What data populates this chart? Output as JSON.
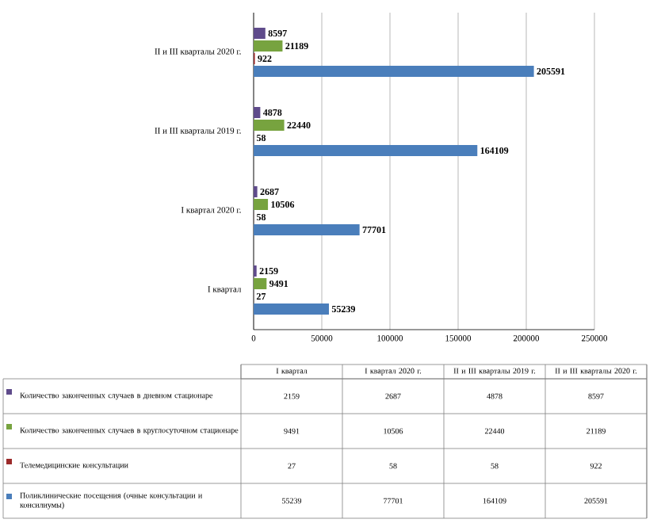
{
  "chart_data": {
    "type": "bar",
    "orientation": "horizontal",
    "categories": [
      "II и III кварталы 2020 г.",
      "II и III кварталы 2019 г.",
      "I квартал 2020 г.",
      "I квартал"
    ],
    "series": [
      {
        "name": "Количество законченных случаев в дневном стационаре",
        "color": "#5f4b8b",
        "values": [
          8597,
          4878,
          2687,
          2159
        ],
        "value_labels": [
          "8597",
          "4878",
          "2687",
          "2159"
        ]
      },
      {
        "name": "Количество законченных случаев в круглосуточном стационаре",
        "color": "#77a33f",
        "values": [
          21189,
          22440,
          10506,
          9491
        ],
        "value_labels": [
          "21189",
          "22440",
          "10506",
          "9491"
        ]
      },
      {
        "name": "Телемедицинские консультации",
        "color": "#9b2a2a",
        "values": [
          922,
          58,
          58,
          27
        ],
        "value_labels": [
          "922",
          "58",
          "58",
          "27"
        ]
      },
      {
        "name": "Поликлинические посещения (очные консультации и консилиумы)",
        "color": "#4a7ebb",
        "values": [
          205591,
          164109,
          77701,
          55239
        ],
        "value_labels": [
          "205591",
          "164109",
          "77701",
          "55239"
        ]
      }
    ],
    "xlim": [
      0,
      250000
    ],
    "xticks": [
      0,
      50000,
      100000,
      150000,
      200000,
      250000
    ],
    "grid": "x",
    "legend": "bottom"
  }
}
